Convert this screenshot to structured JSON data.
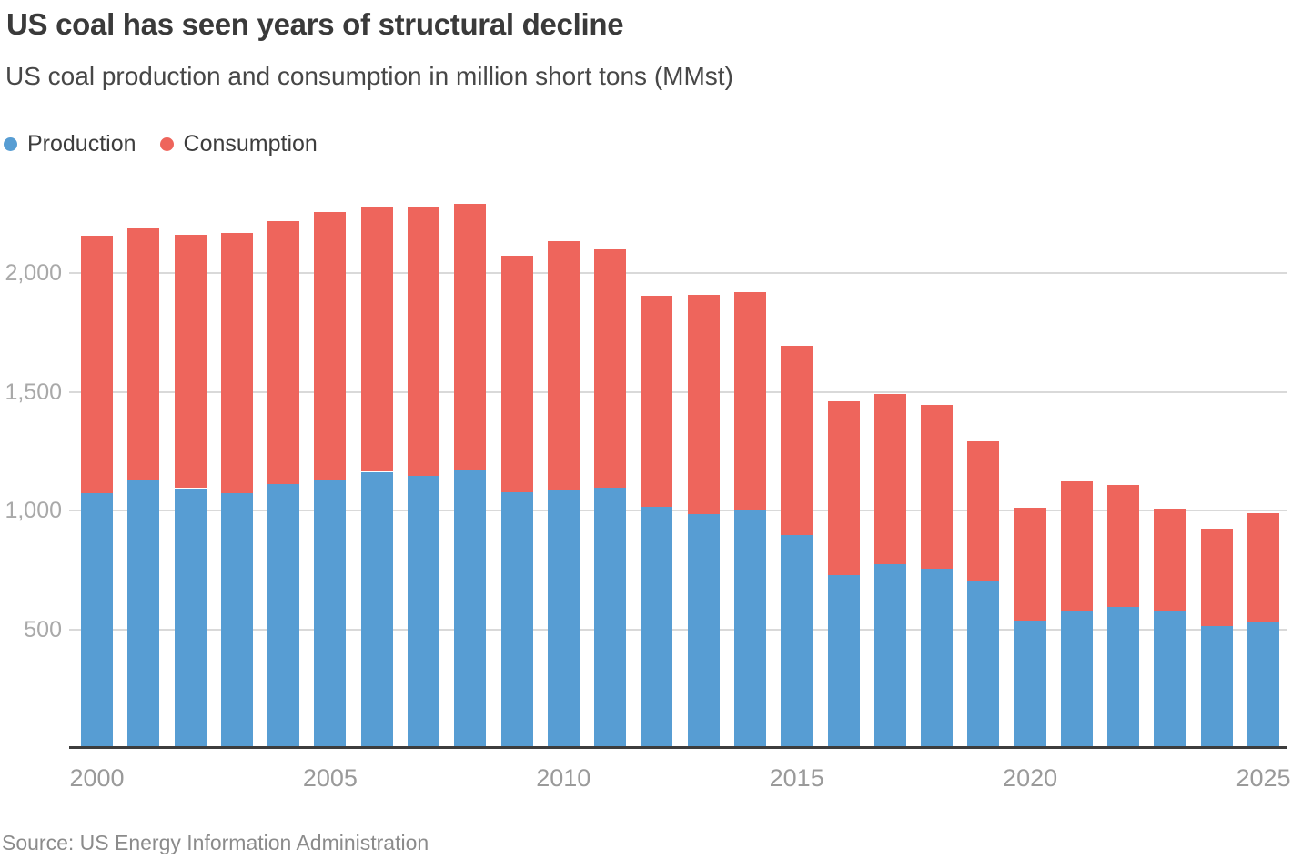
{
  "header": {
    "title": "US coal has seen years of structural decline",
    "subtitle": "US coal production and consumption in million short tons (MMst)"
  },
  "footer": {
    "source": "Source: US Energy Information Administration"
  },
  "chart_data": {
    "type": "bar",
    "stacked": true,
    "title": "US coal has seen years of structural decline",
    "subtitle": "US coal production and consumption in million short tons (MMst)",
    "unit": "million short tons (MMst)",
    "categories": [
      "2000",
      "2001",
      "2002",
      "2003",
      "2004",
      "2005",
      "2006",
      "2007",
      "2008",
      "2009",
      "2010",
      "2011",
      "2012",
      "2013",
      "2014",
      "2015",
      "2016",
      "2017",
      "2018",
      "2019",
      "2020",
      "2021",
      "2022",
      "2023",
      "2024",
      "2025"
    ],
    "series": [
      {
        "name": "Production",
        "color": "#579dd3",
        "values": [
          1074,
          1128,
          1094,
          1072,
          1112,
          1131,
          1163,
          1147,
          1172,
          1075,
          1085,
          1096,
          1016,
          985,
          1000,
          897,
          728,
          774,
          756,
          706,
          535,
          578,
          594,
          578,
          512,
          530
        ]
      },
      {
        "name": "Consumption",
        "color": "#ee655c",
        "values": [
          1084,
          1060,
          1066,
          1095,
          1107,
          1126,
          1112,
          1128,
          1121,
          997,
          1048,
          1003,
          889,
          924,
          918,
          798,
          731,
          717,
          688,
          587,
          477,
          546,
          513,
          430,
          411,
          457
        ]
      }
    ],
    "ylim": [
      0,
      2300
    ],
    "yticks": [
      500,
      1000,
      1500,
      2000
    ],
    "ytick_labels": [
      "500",
      "1,000",
      "1,500",
      "2,000"
    ],
    "xtick_labels": [
      "2000",
      "2005",
      "2010",
      "2015",
      "2020",
      "2025"
    ],
    "grid": "horizontal",
    "legend_position": "top-left",
    "colors": {
      "gridline": "#d9d9d9",
      "axis_line": "#3d3d3d",
      "tick_label": "#a0a0a0"
    }
  }
}
